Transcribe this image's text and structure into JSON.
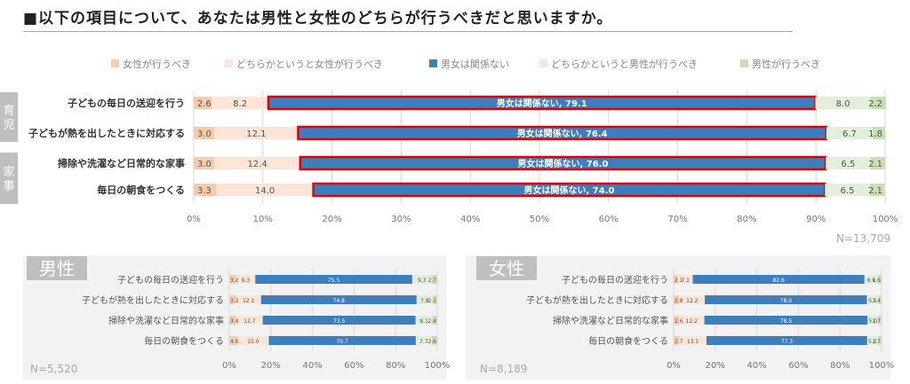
{
  "title": "■以下の項目について、あなたは男性と女性のどちらが行うべきだと思いますか。",
  "colors": {
    "female": "#f8cbad",
    "rather_female": "#fce4d6",
    "neither": "#3d7ebf",
    "rather_male": "#e2efda",
    "male": "#c6e0b4",
    "highlight": "#e00000",
    "group_label_bg": "#bfbfbf",
    "panel_bg": "#f2f2f2"
  },
  "chart_data": [
    {
      "type": "bar",
      "stacked": true,
      "orientation": "horizontal",
      "legend": [
        "女性が行うべき",
        "どちらかというと女性が行うべき",
        "男女は関係ない",
        "どちらかというと男性が行うべき",
        "男性が行うべき"
      ],
      "legend_position": "top",
      "groups": [
        {
          "label": "育児",
          "rows": [
            0,
            1
          ]
        },
        {
          "label": "家事",
          "rows": [
            2,
            3
          ]
        }
      ],
      "categories": [
        "子どもの毎日の送迎を行う",
        "子どもが熱を出したときに対応する",
        "掃除や洗濯など日常的な家事",
        "毎日の朝食をつくる"
      ],
      "series": [
        {
          "name": "女性が行うべき",
          "values": [
            2.6,
            3.0,
            3.0,
            3.3
          ]
        },
        {
          "name": "どちらかというと女性が行うべき",
          "values": [
            8.2,
            12.1,
            12.4,
            14.0
          ]
        },
        {
          "name": "男女は関係ない",
          "values": [
            79.1,
            76.4,
            76.0,
            74.0
          ]
        },
        {
          "name": "どちらかというと男性が行うべき",
          "values": [
            8.0,
            6.7,
            6.5,
            6.5
          ]
        },
        {
          "name": "男性が行うべき",
          "values": [
            2.2,
            1.8,
            2.1,
            2.1
          ]
        }
      ],
      "neither_labels": [
        "男女は関係ない, 79.1",
        "男女は関係ない, 76.4",
        "男女は関係ない, 76.0",
        "男女は関係ない, 74.0"
      ],
      "value_labels": [
        [
          "2.6",
          "8.2",
          "8.0",
          "2.2"
        ],
        [
          "3.0",
          "12.1",
          "6.7",
          "1.8"
        ],
        [
          "3.0",
          "12.4",
          "6.5",
          "2.1"
        ],
        [
          "3.3",
          "14.0",
          "6.5",
          "2.1"
        ]
      ],
      "xlim": [
        0,
        100
      ],
      "xticks": [
        "0%",
        "10%",
        "20%",
        "30%",
        "40%",
        "50%",
        "60%",
        "70%",
        "80%",
        "90%",
        "100%"
      ],
      "n_label": "N=13,709"
    },
    {
      "type": "bar",
      "stacked": true,
      "orientation": "horizontal",
      "panel_title": "男性",
      "categories": [
        "子どもの毎日の送迎を行う",
        "子どもが熱を出したときに対応する",
        "掃除や洗濯など日常的な家事",
        "毎日の朝食をつくる"
      ],
      "series": [
        {
          "name": "女性が行うべき",
          "values": [
            3.2,
            3.2,
            3.4,
            4.0
          ]
        },
        {
          "name": "どちらかというと女性が行うべき",
          "values": [
            9.3,
            12.1,
            12.7,
            15.0
          ]
        },
        {
          "name": "男女は関係ない",
          "values": [
            75.5,
            74.8,
            73.5,
            70.7
          ]
        },
        {
          "name": "どちらかというと男性が行うべき",
          "values": [
            9.3,
            7.8,
            8.1,
            7.7
          ]
        },
        {
          "name": "男性が行うべき",
          "values": [
            2.7,
            2.1,
            2.4,
            2.6
          ]
        }
      ],
      "value_labels": [
        [
          "3.2",
          "9.3",
          "75.5",
          "9.3",
          "2.7"
        ],
        [
          "3.2",
          "12.1",
          "74.8",
          "7.8",
          "2.1"
        ],
        [
          "3.4",
          "12.7",
          "73.5",
          "8.1",
          "2.4"
        ],
        [
          "4.0",
          "15.0",
          "70.7",
          "7.7",
          "2.6"
        ]
      ],
      "xlim": [
        0,
        100
      ],
      "xticks": [
        "0%",
        "20%",
        "40%",
        "60%",
        "80%",
        "100%"
      ],
      "n_label": "N=5,520"
    },
    {
      "type": "bar",
      "stacked": true,
      "orientation": "horizontal",
      "panel_title": "女性",
      "categories": [
        "子どもの毎日の送迎を行う",
        "子どもが熱を出したときに対応する",
        "掃除や洗濯など日常的な家事",
        "毎日の朝食をつくる"
      ],
      "series": [
        {
          "name": "女性が行うべき",
          "values": [
            2.1,
            2.8,
            2.6,
            2.7
          ]
        },
        {
          "name": "どちらかというと女性が行うべき",
          "values": [
            7.1,
            12.2,
            12.2,
            13.1
          ]
        },
        {
          "name": "男女は関係ない",
          "values": [
            82.6,
            78.0,
            78.5,
            77.3
          ]
        },
        {
          "name": "どちらかというと男性が行うべき",
          "values": [
            6.6,
            5.5,
            5.0,
            5.2
          ]
        },
        {
          "name": "男性が行うべき",
          "values": [
            1.6,
            1.4,
            1.7,
            1.7
          ]
        }
      ],
      "value_labels": [
        [
          "2.1",
          "7.1",
          "82.6",
          "6.6",
          "1.6"
        ],
        [
          "2.8",
          "12.2",
          "78.0",
          "5.5",
          "1.4"
        ],
        [
          "2.6",
          "12.2",
          "78.5",
          "5.0",
          "1.7"
        ],
        [
          "2.7",
          "13.1",
          "77.3",
          "5.2",
          "1.7"
        ]
      ],
      "xlim": [
        0,
        100
      ],
      "xticks": [
        "0%",
        "20%",
        "40%",
        "60%",
        "80%",
        "100%"
      ],
      "n_label": "N=8,189"
    }
  ]
}
